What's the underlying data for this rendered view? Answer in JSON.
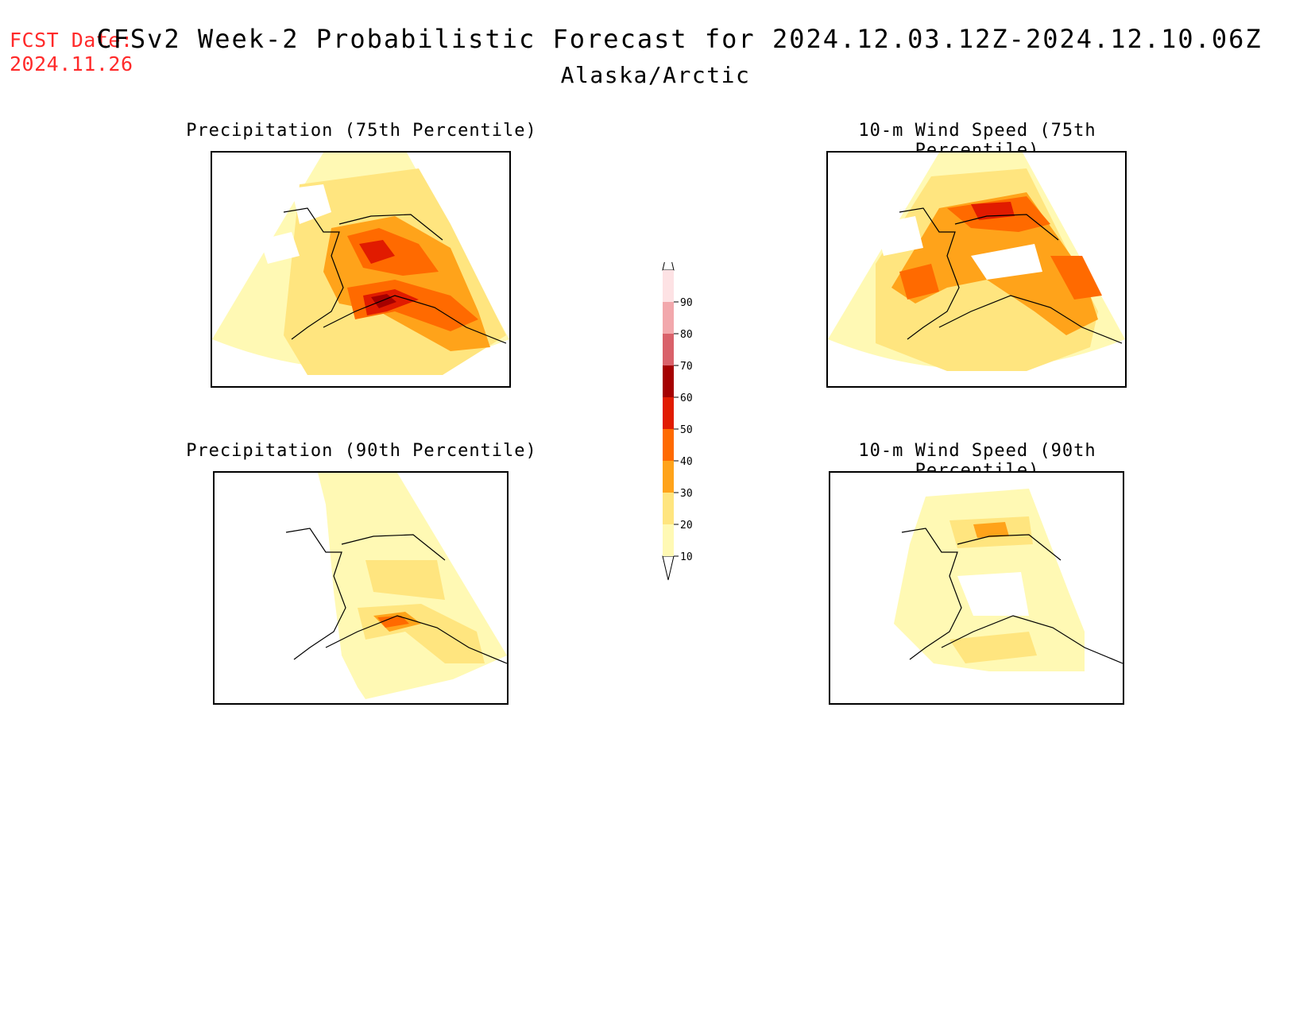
{
  "header": {
    "fcst_label": "FCST Date:",
    "fcst_date": "2024.11.26",
    "title": "CFSv2 Week-2 Probabilistic Forecast for 2024.12.03.12Z-2024.12.10.06Z",
    "region": "Alaska/Arctic"
  },
  "panels": [
    {
      "title": "Precipitation (75th Percentile)"
    },
    {
      "title": "10-m Wind Speed (75th Percentile)"
    },
    {
      "title": "Precipitation (90th Percentile)"
    },
    {
      "title": "10-m Wind Speed (90th Percentile)"
    }
  ],
  "legend": {
    "ticks": [
      "10",
      "20",
      "30",
      "40",
      "50",
      "60",
      "70",
      "80",
      "90"
    ],
    "colors": [
      "#fff9b4",
      "#ffe57f",
      "#ffa31a",
      "#ff6a00",
      "#e11b00",
      "#a50000",
      "#d9616a",
      "#f2a8ac",
      "#fde2e4"
    ]
  },
  "colors": {
    "header_red": "#ff2a2a",
    "pale_yellow": "#fff9b4",
    "yellow": "#ffe57f",
    "orange": "#ffa31a",
    "dark_orange": "#ff6a00",
    "red": "#e11b00",
    "dark_red": "#a50000"
  }
}
